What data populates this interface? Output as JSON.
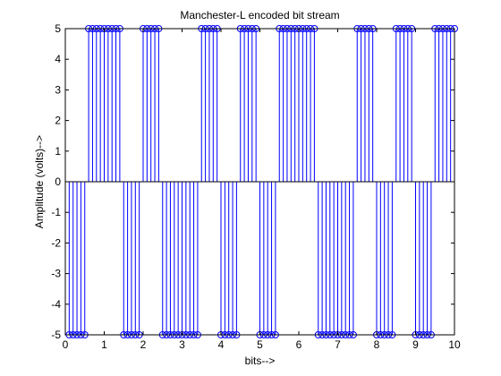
{
  "chart_data": {
    "type": "stem",
    "title": "Manchester-L encoded bit stream",
    "xlabel": "bits-->",
    "ylabel": "Amplitude (volts)-->",
    "xlim": [
      0,
      10
    ],
    "ylim": [
      -5,
      5
    ],
    "x_ticks": [
      "0",
      "1",
      "2",
      "3",
      "4",
      "5",
      "6",
      "7",
      "8",
      "9",
      "10"
    ],
    "y_ticks": [
      "-5",
      "-4",
      "-3",
      "-2",
      "-1",
      "0",
      "1",
      "2",
      "3",
      "4",
      "5"
    ],
    "grid": false,
    "baseline": 0,
    "sample_step": 0.1,
    "series": [
      {
        "color": "#0000ff",
        "x": [
          0.1,
          0.2,
          0.3,
          0.4,
          0.5,
          0.6,
          0.7,
          0.8,
          0.9,
          1.0,
          1.1,
          1.2,
          1.3,
          1.4,
          1.5,
          1.6,
          1.7,
          1.8,
          1.9,
          2.0,
          2.1,
          2.2,
          2.3,
          2.4,
          2.5,
          2.6,
          2.7,
          2.8,
          2.9,
          3.0,
          3.1,
          3.2,
          3.3,
          3.4,
          3.5,
          3.6,
          3.7,
          3.8,
          3.9,
          4.0,
          4.1,
          4.2,
          4.3,
          4.4,
          4.5,
          4.6,
          4.7,
          4.8,
          4.9,
          5.0,
          5.1,
          5.2,
          5.3,
          5.4,
          5.5,
          5.6,
          5.7,
          5.8,
          5.9,
          6.0,
          6.1,
          6.2,
          6.3,
          6.4,
          6.5,
          6.6,
          6.7,
          6.8,
          6.9,
          7.0,
          7.1,
          7.2,
          7.3,
          7.4,
          7.5,
          7.6,
          7.7,
          7.8,
          7.9,
          8.0,
          8.1,
          8.2,
          8.3,
          8.4,
          8.5,
          8.6,
          8.7,
          8.8,
          8.9,
          9.0,
          9.1,
          9.2,
          9.3,
          9.4,
          9.5,
          9.6,
          9.7,
          9.8,
          9.9,
          10.0
        ],
        "y": [
          -5,
          -5,
          -5,
          -5,
          -5,
          5,
          5,
          5,
          5,
          5,
          5,
          5,
          5,
          5,
          -5,
          -5,
          -5,
          -5,
          -5,
          5,
          5,
          5,
          5,
          5,
          -5,
          -5,
          -5,
          -5,
          -5,
          -5,
          -5,
          -5,
          -5,
          -5,
          5,
          5,
          5,
          5,
          5,
          -5,
          -5,
          -5,
          -5,
          -5,
          5,
          5,
          5,
          5,
          5,
          -5,
          -5,
          -5,
          -5,
          -5,
          5,
          5,
          5,
          5,
          5,
          5,
          5,
          5,
          5,
          5,
          -5,
          -5,
          -5,
          -5,
          -5,
          -5,
          -5,
          -5,
          -5,
          -5,
          5,
          5,
          5,
          5,
          5,
          -5,
          -5,
          -5,
          -5,
          -5,
          5,
          5,
          5,
          5,
          5,
          -5,
          -5,
          -5,
          -5,
          -5,
          5,
          5,
          5,
          5,
          5,
          5
        ]
      }
    ]
  }
}
